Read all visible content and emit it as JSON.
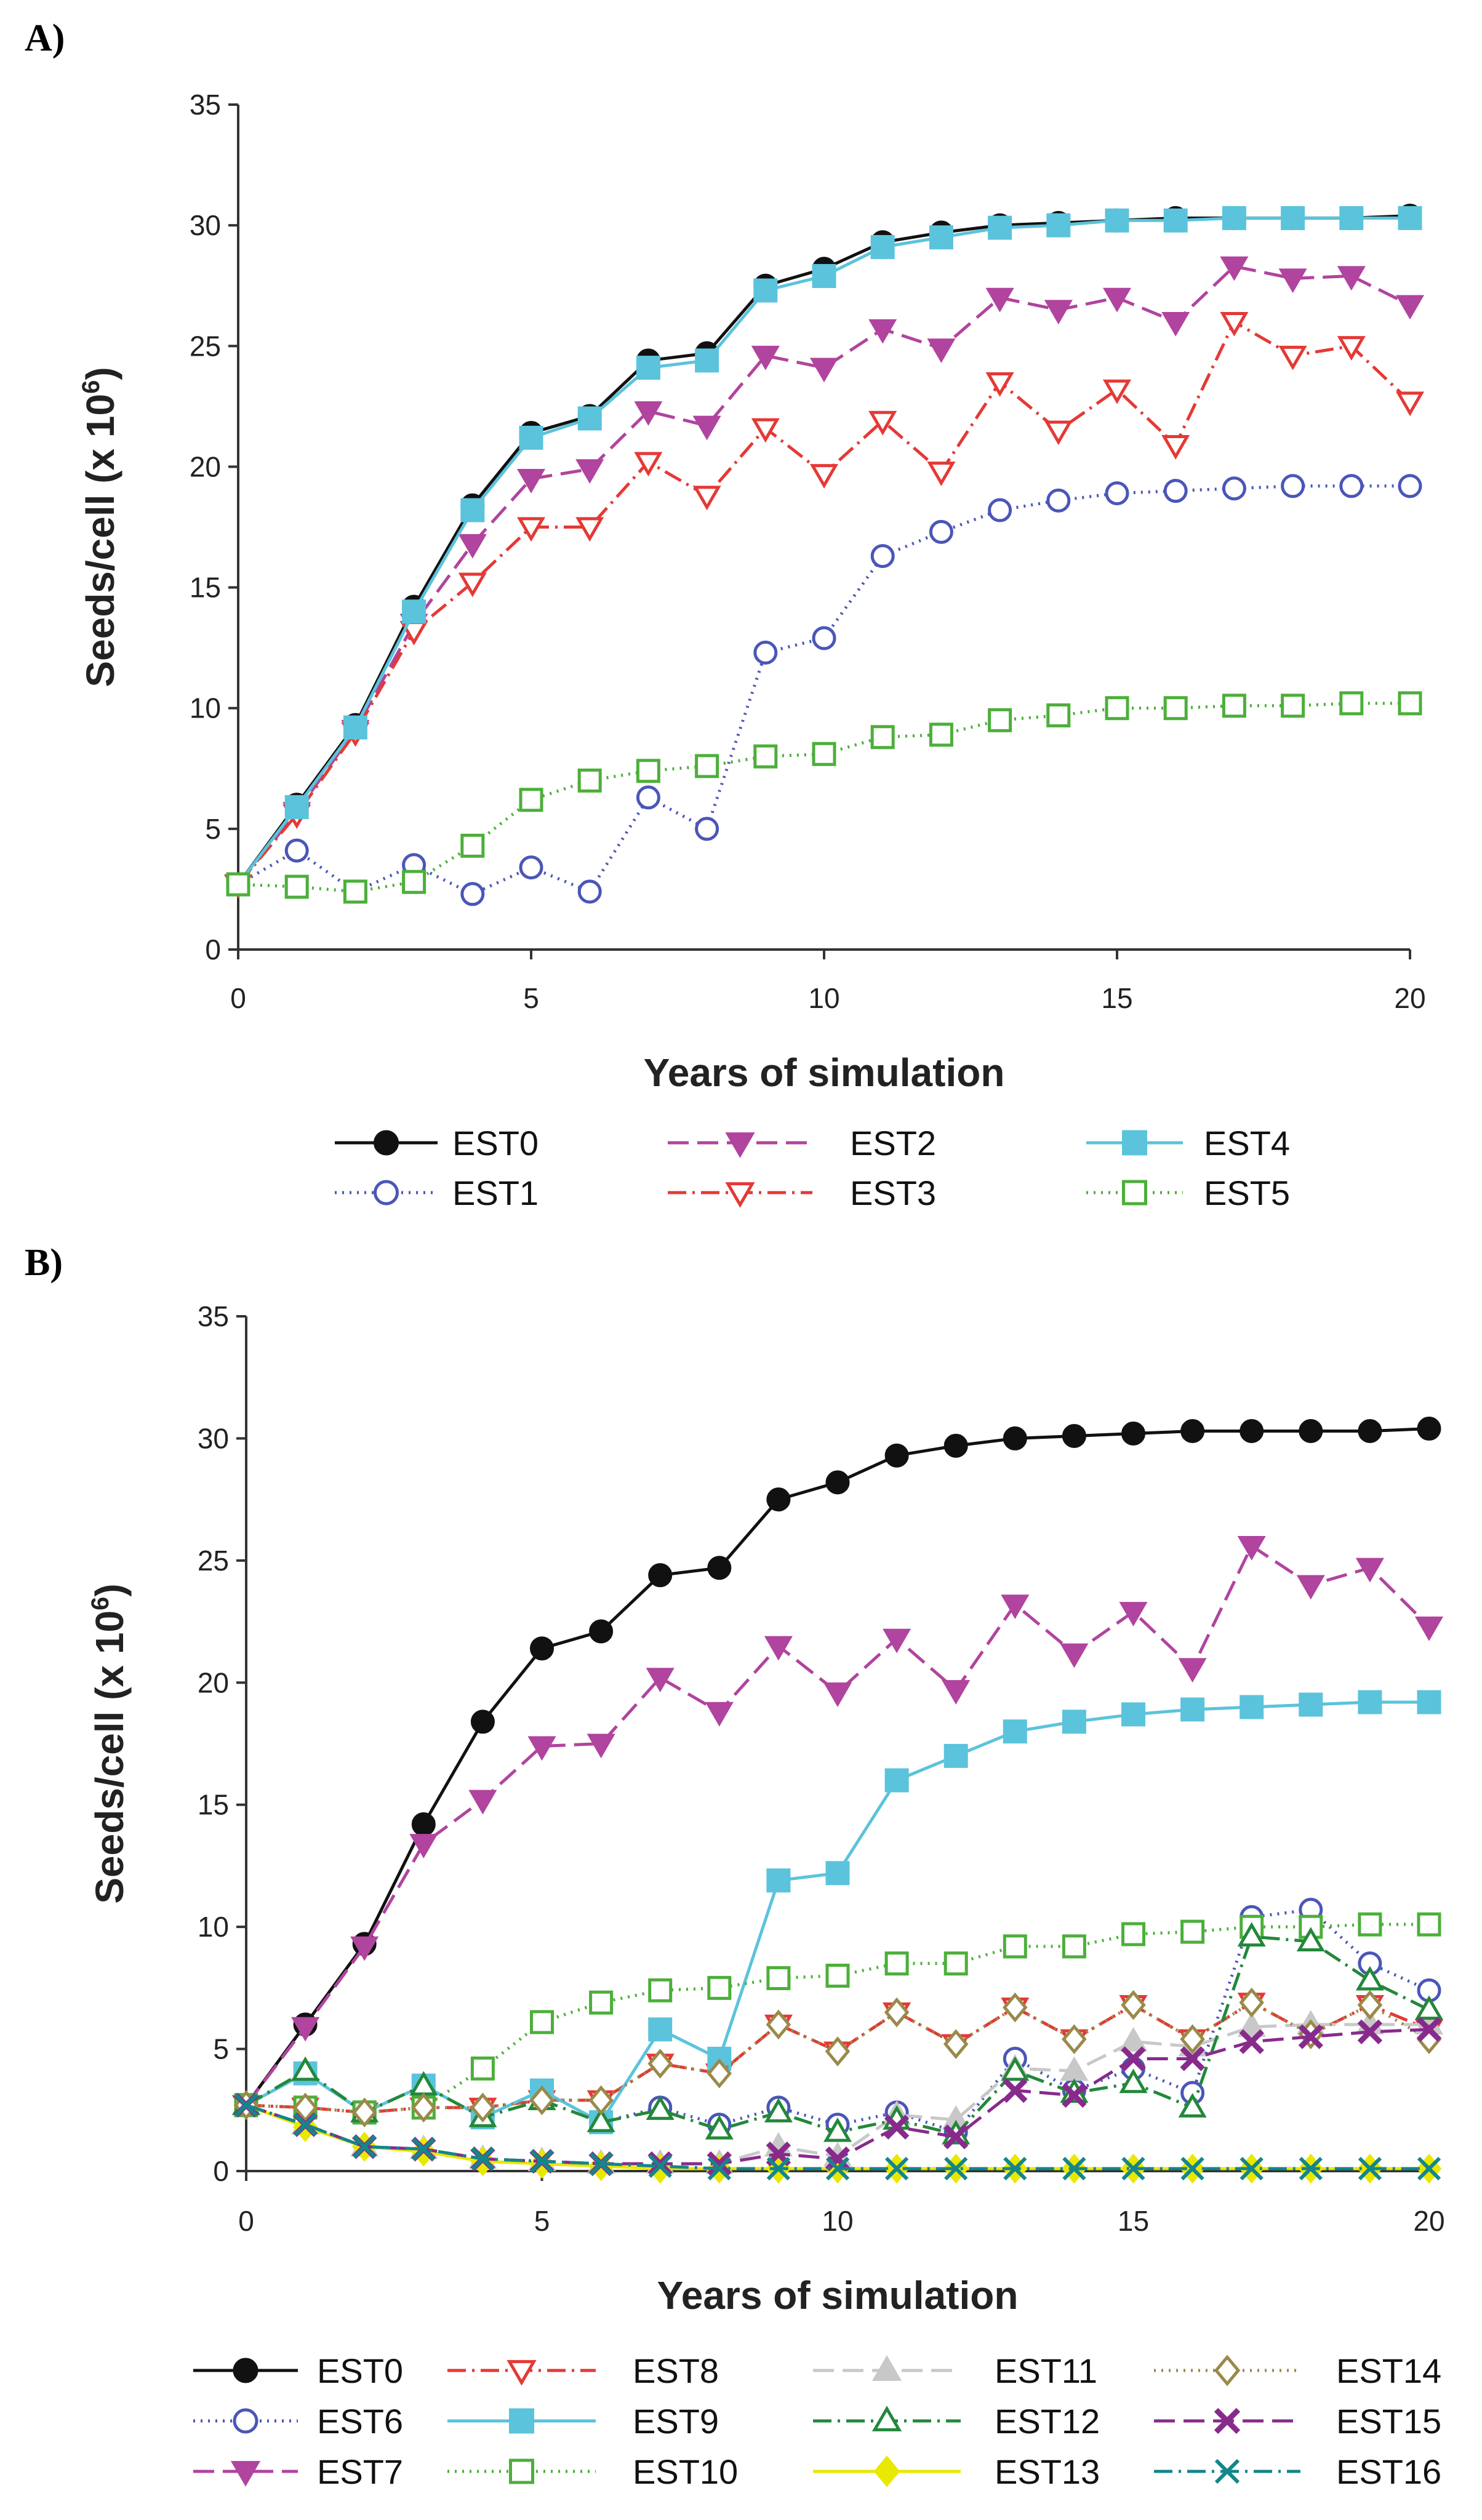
{
  "chart_data": [
    {
      "panel": "A)",
      "type": "line",
      "xlabel": "Years of simulation",
      "ylabel": {
        "main": "Seeds/cell (x 10",
        "sup": "6",
        "close": ")"
      },
      "xlim": [
        0,
        20
      ],
      "ylim": [
        0,
        35
      ],
      "xticks": [
        "0",
        "5",
        "10",
        "15",
        "20"
      ],
      "yticks": [
        "0",
        "5",
        "10",
        "15",
        "20",
        "25",
        "30",
        "35"
      ],
      "grid": false,
      "legend_position": "bottom",
      "x": [
        0,
        1,
        2,
        3,
        4,
        5,
        6,
        7,
        8,
        9,
        10,
        11,
        12,
        13,
        14,
        15,
        16,
        17,
        18,
        19,
        20
      ],
      "series": [
        {
          "name": "EST0",
          "color": "#111111",
          "dash": "solid",
          "marker": "circle",
          "filled": true,
          "values": [
            2.7,
            6.0,
            9.3,
            14.2,
            18.4,
            21.4,
            22.1,
            24.4,
            24.7,
            27.5,
            28.2,
            29.3,
            29.7,
            30.0,
            30.1,
            30.2,
            30.3,
            30.3,
            30.3,
            30.3,
            30.4
          ]
        },
        {
          "name": "EST1",
          "color": "#4a56b8",
          "dash": "dotted",
          "marker": "circle",
          "filled": false,
          "values": [
            2.7,
            4.1,
            2.4,
            3.5,
            2.3,
            3.4,
            2.4,
            6.3,
            5.0,
            12.3,
            12.9,
            16.3,
            17.3,
            18.2,
            18.6,
            18.9,
            19.0,
            19.1,
            19.2,
            19.2,
            19.2
          ]
        },
        {
          "name": "EST2",
          "color": "#b0449e",
          "dash": "dashed",
          "marker": "tri-down",
          "filled": true,
          "values": [
            2.7,
            5.7,
            9.1,
            13.5,
            16.8,
            19.5,
            19.9,
            22.3,
            21.7,
            24.6,
            24.1,
            25.7,
            24.9,
            27.0,
            26.5,
            27.0,
            26.0,
            28.3,
            27.8,
            27.9,
            26.7
          ]
        },
        {
          "name": "EST3",
          "color": "#e53935",
          "dash": "dashdot",
          "marker": "tri-down",
          "filled": false,
          "values": [
            2.7,
            5.6,
            9.0,
            13.2,
            15.2,
            17.5,
            17.5,
            20.2,
            18.8,
            21.6,
            19.7,
            21.9,
            19.8,
            23.5,
            21.5,
            23.2,
            20.9,
            26.0,
            24.6,
            25.0,
            22.7
          ]
        },
        {
          "name": "EST4",
          "color": "#5bc3dc",
          "dash": "solid",
          "marker": "square",
          "filled": true,
          "values": [
            2.7,
            5.9,
            9.2,
            14.0,
            18.2,
            21.2,
            22.0,
            24.1,
            24.4,
            27.3,
            27.9,
            29.1,
            29.5,
            29.9,
            30.0,
            30.2,
            30.2,
            30.3,
            30.3,
            30.3,
            30.3
          ]
        },
        {
          "name": "EST5",
          "color": "#4caf3a",
          "dash": "dotted",
          "marker": "square",
          "filled": false,
          "values": [
            2.7,
            2.6,
            2.4,
            2.8,
            4.3,
            6.2,
            7.0,
            7.4,
            7.6,
            8.0,
            8.1,
            8.8,
            8.9,
            9.5,
            9.7,
            10.0,
            10.0,
            10.1,
            10.1,
            10.2,
            10.2
          ]
        }
      ]
    },
    {
      "panel": "B)",
      "type": "line",
      "xlabel": "Years of simulation",
      "ylabel": {
        "main": "Seeds/cell (x 10",
        "sup": "6",
        "close": ")"
      },
      "xlim": [
        0,
        20
      ],
      "ylim": [
        0,
        35
      ],
      "xticks": [
        "0",
        "5",
        "10",
        "15",
        "20"
      ],
      "yticks": [
        "0",
        "5",
        "10",
        "15",
        "20",
        "25",
        "30",
        "35"
      ],
      "grid": false,
      "legend_position": "bottom",
      "x": [
        0,
        1,
        2,
        3,
        4,
        5,
        6,
        7,
        8,
        9,
        10,
        11,
        12,
        13,
        14,
        15,
        16,
        17,
        18,
        19,
        20
      ],
      "series": [
        {
          "name": "EST0",
          "color": "#111111",
          "dash": "solid",
          "marker": "circle",
          "filled": true,
          "values": [
            2.7,
            6.0,
            9.3,
            14.2,
            18.4,
            21.4,
            22.1,
            24.4,
            24.7,
            27.5,
            28.2,
            29.3,
            29.7,
            30.0,
            30.1,
            30.2,
            30.3,
            30.3,
            30.3,
            30.3,
            30.4
          ]
        },
        {
          "name": "EST6",
          "color": "#4a56b8",
          "dash": "dotted",
          "marker": "circle",
          "filled": false,
          "values": [
            2.7,
            4.0,
            2.4,
            3.5,
            2.2,
            3.3,
            2.0,
            2.6,
            1.9,
            2.6,
            1.9,
            2.4,
            1.6,
            4.6,
            3.3,
            4.2,
            3.2,
            10.4,
            10.7,
            8.5,
            7.4
          ]
        },
        {
          "name": "EST7",
          "color": "#b0449e",
          "dash": "dashed",
          "marker": "tri-down",
          "filled": true,
          "values": [
            2.7,
            5.9,
            9.2,
            13.4,
            15.2,
            17.4,
            17.5,
            20.2,
            18.8,
            21.5,
            19.6,
            21.8,
            19.7,
            23.2,
            21.2,
            22.9,
            20.6,
            25.6,
            24.0,
            24.7,
            22.3
          ]
        },
        {
          "name": "EST8",
          "color": "#e53935",
          "dash": "dashdot",
          "marker": "tri-down",
          "filled": false,
          "values": [
            2.7,
            2.6,
            2.4,
            2.6,
            2.6,
            2.9,
            2.9,
            4.4,
            4.0,
            6.0,
            4.9,
            6.5,
            5.2,
            6.7,
            5.4,
            6.8,
            5.4,
            6.9,
            5.6,
            6.8,
            5.8
          ]
        },
        {
          "name": "EST9",
          "color": "#5bc3dc",
          "dash": "solid",
          "marker": "square",
          "filled": true,
          "values": [
            2.7,
            4.0,
            2.4,
            3.5,
            2.2,
            3.3,
            2.0,
            5.8,
            4.6,
            11.9,
            12.2,
            16.0,
            17.0,
            18.0,
            18.4,
            18.7,
            18.9,
            19.0,
            19.1,
            19.2,
            19.2
          ]
        },
        {
          "name": "EST10",
          "color": "#4caf3a",
          "dash": "dotted",
          "marker": "square",
          "filled": false,
          "values": [
            2.7,
            2.6,
            2.4,
            2.6,
            4.2,
            6.1,
            6.9,
            7.4,
            7.5,
            7.9,
            8.0,
            8.5,
            8.5,
            9.2,
            9.2,
            9.7,
            9.8,
            10.0,
            10.0,
            10.1,
            10.1
          ]
        },
        {
          "name": "EST11",
          "color": "#c8c8c8",
          "dash": "dashed",
          "marker": "tri-up",
          "filled": true,
          "values": [
            2.7,
            1.9,
            1.0,
            0.9,
            0.5,
            0.4,
            0.3,
            0.3,
            0.3,
            1.0,
            0.6,
            2.3,
            2.1,
            4.2,
            4.1,
            5.3,
            5.1,
            5.9,
            6.0,
            6.0,
            6.0
          ]
        },
        {
          "name": "EST12",
          "color": "#23883a",
          "dash": "dashdot",
          "marker": "tri-up",
          "filled": false,
          "values": [
            2.7,
            4.1,
            2.4,
            3.5,
            2.2,
            2.9,
            2.0,
            2.5,
            1.7,
            2.4,
            1.6,
            2.1,
            1.5,
            4.1,
            3.2,
            3.6,
            2.6,
            9.6,
            9.4,
            7.8,
            6.6
          ]
        },
        {
          "name": "EST13",
          "color": "#e8e800",
          "dash": "solid",
          "marker": "diamond",
          "filled": true,
          "values": [
            2.7,
            1.8,
            1.0,
            0.8,
            0.4,
            0.3,
            0.2,
            0.1,
            0.1,
            0.1,
            0.1,
            0.1,
            0.1,
            0.1,
            0.1,
            0.1,
            0.1,
            0.1,
            0.1,
            0.1,
            0.1
          ]
        },
        {
          "name": "EST14",
          "color": "#9a8a4a",
          "dash": "dotted",
          "marker": "diamond",
          "filled": false,
          "values": [
            2.7,
            2.6,
            2.4,
            2.6,
            2.6,
            2.9,
            2.9,
            4.4,
            4.0,
            6.0,
            4.9,
            6.5,
            5.2,
            6.7,
            5.4,
            6.8,
            5.4,
            6.9,
            5.6,
            6.8,
            5.4
          ]
        },
        {
          "name": "EST15",
          "color": "#882a8c",
          "dash": "dashed",
          "marker": "x",
          "filled": true,
          "values": [
            2.7,
            1.9,
            1.0,
            0.9,
            0.5,
            0.4,
            0.3,
            0.3,
            0.3,
            0.7,
            0.5,
            1.8,
            1.4,
            3.3,
            3.1,
            4.6,
            4.6,
            5.3,
            5.5,
            5.7,
            5.8
          ]
        },
        {
          "name": "EST16",
          "color": "#14868a",
          "dash": "dashdot",
          "marker": "x",
          "filled": false,
          "values": [
            2.7,
            1.9,
            1.0,
            0.9,
            0.5,
            0.4,
            0.3,
            0.2,
            0.1,
            0.1,
            0.1,
            0.1,
            0.1,
            0.1,
            0.1,
            0.1,
            0.1,
            0.1,
            0.1,
            0.1,
            0.1
          ]
        }
      ]
    }
  ]
}
